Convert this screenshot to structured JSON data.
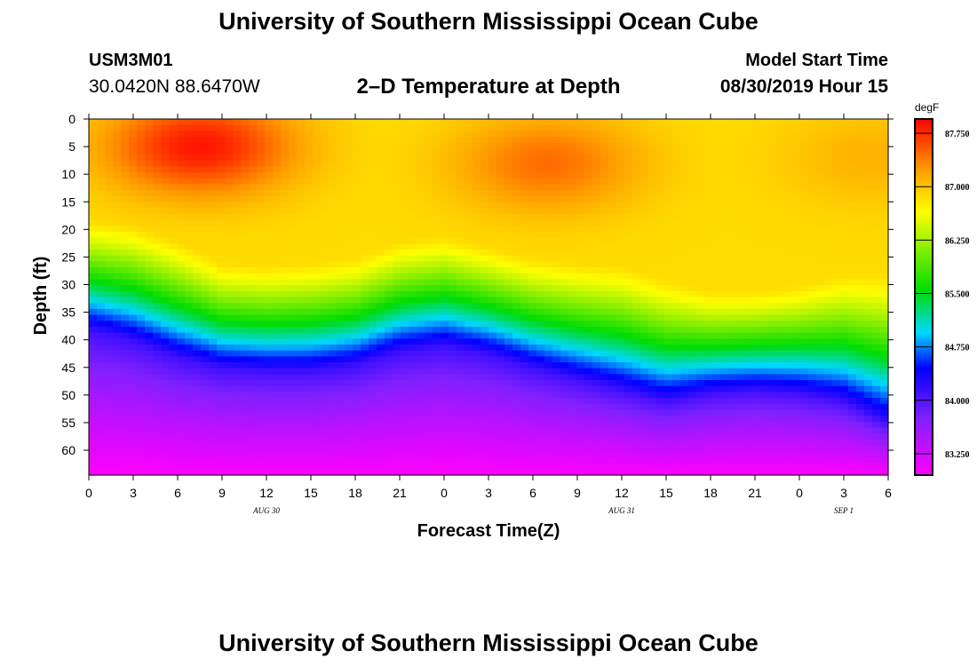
{
  "header": {
    "title": "University of Southern Mississippi Ocean Cube",
    "station_id": "USM3M01",
    "station_coords": "30.0420N 88.6470W",
    "plot_title": "2–D Temperature at Depth",
    "model_start_label": "Model Start Time",
    "model_start_value": "08/30/2019 Hour 15"
  },
  "footer": {
    "title": "University of Southern Mississippi Ocean Cube"
  },
  "chart_data": {
    "type": "heatmap",
    "title": "2–D Temperature at Depth",
    "xlabel": "Forecast Time(Z)",
    "ylabel": "Depth (ft)",
    "x_tick_labels": [
      "0",
      "3",
      "6",
      "9",
      "12",
      "15",
      "18",
      "21",
      "0",
      "3",
      "6",
      "9",
      "12",
      "15",
      "18",
      "21",
      "0",
      "3",
      "6"
    ],
    "x_range_hours": [
      0,
      54
    ],
    "date_labels": [
      {
        "text": "AUG 30",
        "hour": 12
      },
      {
        "text": "AUG 31",
        "hour": 36
      },
      {
        "text": "SEP 1",
        "hour": 51
      }
    ],
    "y_tick_labels": [
      "0",
      "5",
      "10",
      "15",
      "20",
      "25",
      "30",
      "35",
      "40",
      "45",
      "50",
      "55",
      "60"
    ],
    "y_range_ft": [
      0,
      64.5
    ],
    "colorbar": {
      "unit": "degF",
      "min": 82.95,
      "max": 87.95,
      "labels": [
        "87.750",
        "87.000",
        "86.250",
        "85.500",
        "84.750",
        "84.000",
        "83.250"
      ]
    },
    "thermocline_depth_ft": {
      "hours": [
        0,
        3,
        6,
        9,
        12,
        15,
        18,
        21,
        24,
        27,
        30,
        33,
        36,
        39,
        42,
        45,
        48,
        51,
        54
      ],
      "depth": [
        38,
        40,
        43,
        45,
        45.5,
        45.5,
        44.5,
        42,
        41,
        42.5,
        45,
        47,
        49,
        51,
        49.5,
        49,
        49.5,
        51,
        55
      ]
    },
    "surface_layer_depth_ft": {
      "hours": [
        0,
        3,
        6,
        9,
        12,
        15,
        18,
        21,
        24,
        27,
        30,
        33,
        36,
        39,
        42,
        45,
        48,
        51,
        54
      ],
      "depth": [
        18,
        19,
        22,
        26,
        26.5,
        26,
        25,
        22,
        21,
        23,
        25,
        26,
        26.5,
        29,
        31,
        31,
        30,
        28,
        28
      ]
    },
    "surface_warm_cores": [
      {
        "hour": 7.5,
        "depth_ft": 5,
        "value": 87.85
      },
      {
        "hour": 31,
        "depth_ft": 8,
        "value": 87.45
      },
      {
        "hour": 53,
        "depth_ft": 7,
        "value": 87.1
      }
    ],
    "bottom_min_value": 82.95
  }
}
